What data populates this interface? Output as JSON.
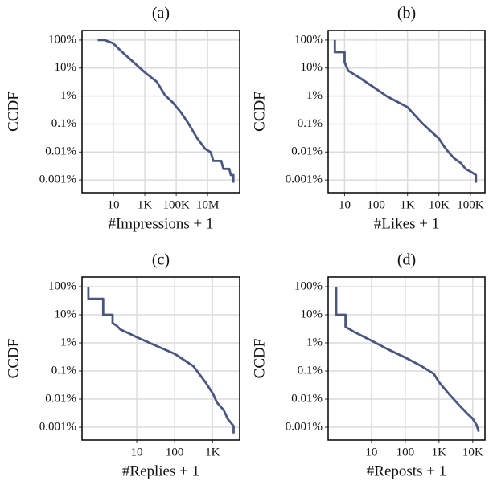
{
  "chart_data": [
    {
      "type": "line",
      "title": "(a)",
      "xlabel": "#Impressions + 1",
      "ylabel": "CCDF",
      "xscale": "log",
      "yscale": "log",
      "grid": true,
      "xlim": [
        0.1,
        1100000000
      ],
      "ylim": [
        0.00035,
        220
      ],
      "xticks": [
        10,
        {
          "value": 1000,
          "label": "1K"
        },
        {
          "value": 100000,
          "label": "100K"
        },
        {
          "value": 10000000,
          "label": "10M"
        }
      ],
      "yticks": [
        {
          "value": 100,
          "label": "100%"
        },
        {
          "value": 10,
          "label": "10%"
        },
        {
          "value": 1,
          "label": "1%"
        },
        {
          "value": 0.1,
          "label": "0.1%"
        },
        {
          "value": 0.01,
          "label": "0.01%"
        },
        {
          "value": 0.001,
          "label": "0.001%"
        }
      ],
      "series": [
        {
          "color": "#4a5580",
          "x": [
            1,
            2.8,
            9.5,
            29,
            170,
            1000,
            5900,
            19000,
            63000,
            200000,
            630000,
            2100000,
            7000000,
            16000000,
            23000000,
            74000000,
            100000000,
            240000000,
            300000000,
            440000000,
            440000000
          ],
          "values": [
            100,
            100,
            77,
            42,
            17,
            7,
            3.2,
            1.1,
            0.57,
            0.26,
            0.1,
            0.032,
            0.013,
            0.0097,
            0.0048,
            0.0048,
            0.0025,
            0.0025,
            0.0015,
            0.0015,
            0.0008
          ]
        }
      ]
    },
    {
      "type": "line",
      "title": "(b)",
      "xlabel": "#Likes + 1",
      "ylabel": "CCDF",
      "xscale": "log",
      "yscale": "log",
      "grid": true,
      "xlim": [
        3,
        290000
      ],
      "ylim": [
        0.00035,
        220
      ],
      "xticks": [
        10,
        100,
        {
          "value": 1000,
          "label": "1K"
        },
        {
          "value": 10000,
          "label": "10K"
        },
        {
          "value": 100000,
          "label": "100K"
        }
      ],
      "yticks": [
        {
          "value": 100,
          "label": "100%"
        },
        {
          "value": 10,
          "label": "10%"
        },
        {
          "value": 1,
          "label": "1%"
        },
        {
          "value": 0.1,
          "label": "0.1%"
        },
        {
          "value": 0.01,
          "label": "0.01%"
        },
        {
          "value": 0.001,
          "label": "0.001%"
        }
      ],
      "series": [
        {
          "color": "#4a5580",
          "x": [
            4.9,
            4.9,
            10,
            10,
            13,
            30,
            100,
            215,
            1000,
            3100,
            10000,
            15000,
            20000,
            30000,
            50000,
            70000,
            100000,
            150000,
            150000
          ],
          "values": [
            100,
            37,
            37,
            16,
            8,
            4.5,
            1.8,
            1,
            0.4,
            0.1,
            0.03,
            0.015,
            0.01,
            0.006,
            0.004,
            0.0025,
            0.002,
            0.0015,
            0.0008
          ]
        }
      ]
    },
    {
      "type": "line",
      "title": "(c)",
      "xlabel": "#Replies + 1",
      "ylabel": "CCDF",
      "xscale": "log",
      "yscale": "log",
      "grid": true,
      "xlim": [
        0.36,
        5200
      ],
      "ylim": [
        0.00035,
        220
      ],
      "xticks": [
        10,
        100,
        {
          "value": 1000,
          "label": "1K"
        }
      ],
      "yticks": [
        {
          "value": 100,
          "label": "100%"
        },
        {
          "value": 10,
          "label": "10%"
        },
        {
          "value": 1,
          "label": "1%"
        },
        {
          "value": 0.1,
          "label": "0.1%"
        },
        {
          "value": 0.01,
          "label": "0.01%"
        },
        {
          "value": 0.001,
          "label": "0.001%"
        }
      ],
      "series": [
        {
          "color": "#4a5580",
          "x": [
            0.53,
            0.53,
            1.3,
            1.3,
            2.3,
            2.3,
            2.9,
            3.7,
            6.1,
            10,
            26,
            100,
            310,
            650,
            1040,
            1300,
            2000,
            2500,
            3600,
            3600
          ],
          "values": [
            100,
            37,
            37,
            10,
            10,
            5,
            4.2,
            3,
            2.2,
            1.6,
            0.9,
            0.41,
            0.15,
            0.04,
            0.015,
            0.0077,
            0.004,
            0.002,
            0.0011,
            0.0006
          ]
        }
      ]
    },
    {
      "type": "line",
      "title": "(d)",
      "xlabel": "#Reposts + 1",
      "ylabel": "CCDF",
      "xscale": "log",
      "yscale": "log",
      "grid": true,
      "xlim": [
        0.52,
        23000
      ],
      "ylim": [
        0.00035,
        220
      ],
      "xticks": [
        10,
        100,
        {
          "value": 1000,
          "label": "1K"
        },
        {
          "value": 10000,
          "label": "10K"
        }
      ],
      "yticks": [
        {
          "value": 100,
          "label": "100%"
        },
        {
          "value": 10,
          "label": "10%"
        },
        {
          "value": 1,
          "label": "1%"
        },
        {
          "value": 0.1,
          "label": "0.1%"
        },
        {
          "value": 0.01,
          "label": "0.01%"
        },
        {
          "value": 0.001,
          "label": "0.001%"
        }
      ],
      "series": [
        {
          "color": "#4a5580",
          "x": [
            0.9,
            0.9,
            1.7,
            1.7,
            3,
            10,
            30,
            100,
            300,
            700,
            1000,
            2000,
            4000,
            7000,
            10000,
            13000,
            15000
          ],
          "values": [
            100,
            10,
            10,
            3.7,
            2.5,
            1.2,
            0.6,
            0.3,
            0.15,
            0.08,
            0.04,
            0.015,
            0.006,
            0.003,
            0.002,
            0.0012,
            0.0007
          ]
        }
      ]
    }
  ]
}
